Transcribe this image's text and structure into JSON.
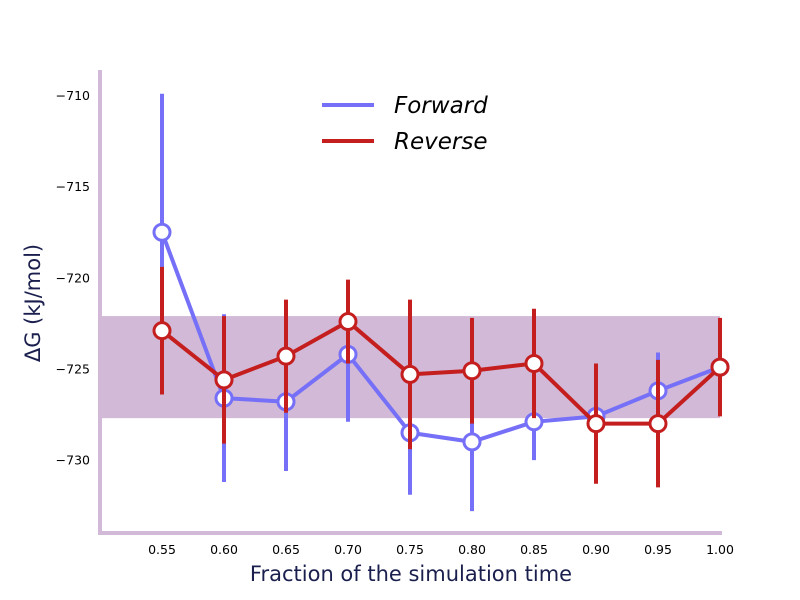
{
  "chart_data": {
    "type": "line",
    "xlabel": "Fraction of the simulation time",
    "ylabel": "ΔG (kJ/mol)",
    "xlim": [
      0.5,
      1.0
    ],
    "ylim": [
      -734,
      -708.6
    ],
    "x_ticks": [
      "0.55",
      "0.60",
      "0.65",
      "0.70",
      "0.75",
      "0.80",
      "0.85",
      "0.90",
      "0.95",
      "1.00"
    ],
    "y_ticks": [
      "−710",
      "−715",
      "−720",
      "−725",
      "−730"
    ],
    "x_tick_values": [
      0.55,
      0.6,
      0.65,
      0.7,
      0.75,
      0.8,
      0.85,
      0.9,
      0.95,
      1.0
    ],
    "y_tick_values": [
      -710,
      -715,
      -720,
      -725,
      -730
    ],
    "band": {
      "ymin": -727.7,
      "ymax": -722.1,
      "color": "#d2b9d7"
    },
    "axis_color": "#d2b9d7",
    "grid": false,
    "legend_position": "top-center",
    "series": [
      {
        "name": "Forward",
        "color": "#7570f7",
        "x": [
          0.55,
          0.6,
          0.65,
          0.7,
          0.75,
          0.8,
          0.85,
          0.9,
          0.95,
          1.0
        ],
        "y": [
          -717.5,
          -726.6,
          -726.8,
          -724.2,
          -728.5,
          -729.0,
          -727.9,
          -727.6,
          -726.2,
          -724.9
        ],
        "err": [
          7.6,
          4.6,
          3.8,
          3.7,
          3.4,
          3.8,
          2.1,
          0.2,
          2.1,
          0.2
        ]
      },
      {
        "name": "Reverse",
        "color": "#c41e1e",
        "x": [
          0.55,
          0.6,
          0.65,
          0.7,
          0.75,
          0.8,
          0.85,
          0.9,
          0.95,
          1.0
        ],
        "y": [
          -722.9,
          -725.6,
          -724.3,
          -722.4,
          -725.3,
          -725.1,
          -724.7,
          -728.0,
          -728.0,
          -724.9
        ],
        "err": [
          3.5,
          3.5,
          3.1,
          2.3,
          4.1,
          2.9,
          3.0,
          3.3,
          3.5,
          2.7
        ]
      }
    ]
  }
}
